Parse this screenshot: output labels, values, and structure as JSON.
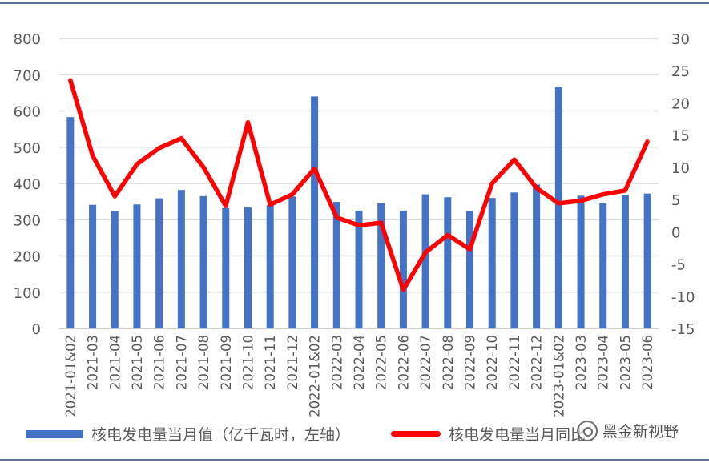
{
  "chart_data": {
    "type": "bar+line",
    "categories": [
      "2021-01&02",
      "2021-03",
      "2021-04",
      "2021-05",
      "2021-06",
      "2021-07",
      "2021-08",
      "2021-09",
      "2021-10",
      "2021-11",
      "2021-12",
      "2022-01&02",
      "2022-03",
      "2022-04",
      "2022-05",
      "2022-06",
      "2022-07",
      "2022-08",
      "2022-09",
      "2022-10",
      "2022-11",
      "2022-12",
      "2023-01&02",
      "2023-03",
      "2023-04",
      "2023-05",
      "2023-06"
    ],
    "left_axis": {
      "min": 0,
      "max": 800,
      "ticks": [
        "0",
        "100",
        "200",
        "300",
        "400",
        "500",
        "600",
        "700",
        "800"
      ]
    },
    "right_axis": {
      "min": -15,
      "max": 30,
      "ticks": [
        "-15",
        "-10",
        "-5",
        "0",
        "5",
        "10",
        "15",
        "20",
        "25",
        "30"
      ]
    },
    "grid": true,
    "series": [
      {
        "name": "核电发电量当月值（亿千瓦时，左轴）",
        "type": "bar",
        "axis": "left",
        "color": "#4472c4",
        "values": [
          583,
          341,
          323,
          342,
          359,
          382,
          365,
          332,
          334,
          340,
          364,
          640,
          349,
          325,
          346,
          325,
          370,
          362,
          323,
          360,
          375,
          397,
          667,
          366,
          345,
          368,
          372
        ]
      },
      {
        "name": "核电发电量当月同比",
        "type": "line",
        "axis": "right",
        "color": "#ff0000",
        "values": [
          23.5,
          11.8,
          5.5,
          10.5,
          13.0,
          14.5,
          10.0,
          4.0,
          17.0,
          4.2,
          5.8,
          9.8,
          2.2,
          1.0,
          1.4,
          -9.0,
          -3.2,
          -0.5,
          -2.7,
          7.5,
          11.2,
          6.8,
          4.4,
          4.8,
          5.8,
          6.4,
          14.0
        ]
      }
    ]
  },
  "legend": {
    "bar_label": "核电发电量当月值（亿千瓦时，左轴）",
    "line_label": "核电发电量当月同比"
  },
  "watermark": {
    "text": "黑金新视野"
  }
}
